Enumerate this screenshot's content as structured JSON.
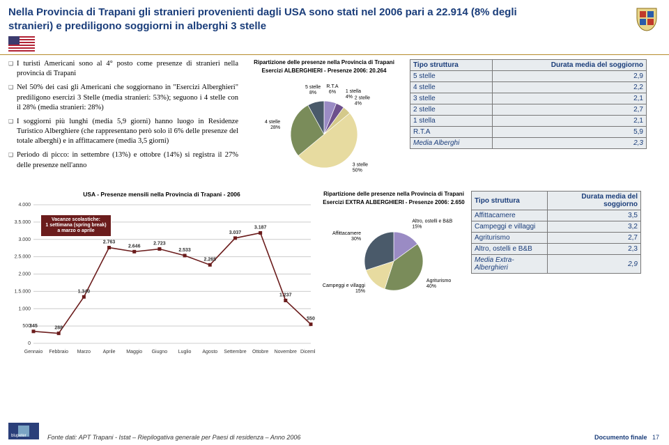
{
  "header": {
    "title": "Nella Provincia di Trapani gli stranieri provenienti dagli USA sono stati nel 2006 pari a 22.914 (8% degli stranieri) e prediligono soggiorni in alberghi 3 stelle"
  },
  "bullets": {
    "b1": "I turisti Americani sono al 4° posto come presenze di stranieri nella provincia di Trapani",
    "b2": "Nel 50% dei casi gli Americani che soggiornano in \"Esercizi Alberghieri\" prediligono esercizi 3 Stelle (media stranieri: 53%); seguono i 4 stelle con il 28% (media stranieri: 28%)",
    "b3": "I soggiorni più lunghi (media 5,9 giorni) hanno luogo in Residenze Turistico Alberghiere (che rappresentano però solo il 6% delle presenze del totale alberghi) e in affittacamere (media 3,5 giorni)",
    "b4": "Periodo di picco: in settembre (13%) e ottobre (14%) si registra il 27% delle presenze nell'anno"
  },
  "pie1": {
    "title1": "Ripartizione delle presenze nella Provincia di Trapani",
    "title2": "Esercizi ALBERGHIERI - Presenze 2006: 20.264",
    "slices": [
      {
        "label": "R.T.A",
        "pct": 6,
        "lbl": "R.T.A\n6%",
        "color": "#9a8bc4"
      },
      {
        "label": "1 stella",
        "pct": 4,
        "lbl": "1 stella\n4%",
        "color": "#6d508c"
      },
      {
        "label": "2 stelle",
        "pct": 4,
        "lbl": "2 stelle\n4%",
        "color": "#d4c98a"
      },
      {
        "label": "3 stelle",
        "pct": 50,
        "lbl": "3 stelle\n50%",
        "color": "#e7dba0"
      },
      {
        "label": "4 stelle",
        "pct": 28,
        "lbl": "4 stelle\n28%",
        "color": "#7a8c5a"
      },
      {
        "label": "5 stelle",
        "pct": 8,
        "lbl": "5 stelle\n8%",
        "color": "#4a5a6a"
      }
    ]
  },
  "table1": {
    "h1": "Tipo struttura",
    "h2": "Durata media del soggiorno",
    "rows": [
      {
        "t": "5 stelle",
        "v": "2,9"
      },
      {
        "t": "4 stelle",
        "v": "2,2"
      },
      {
        "t": "3 stelle",
        "v": "2,1"
      },
      {
        "t": "2 stelle",
        "v": "2,7"
      },
      {
        "t": "1 stella",
        "v": "2,1"
      },
      {
        "t": "R.T.A",
        "v": "5,9"
      }
    ],
    "media_t": "Media Alberghi",
    "media_v": "2,3"
  },
  "lineChart": {
    "title": "USA - Presenze mensili nella Provincia di Trapani - 2006",
    "months": [
      "Gennaio",
      "Febbraio",
      "Marzo",
      "Aprile",
      "Maggio",
      "Giugno",
      "Luglio",
      "Agosto",
      "Settembre",
      "Ottobre",
      "Novembre",
      "Dicembre"
    ],
    "values": [
      345,
      288,
      1340,
      2763,
      2646,
      2723,
      2533,
      2265,
      3037,
      3187,
      1237,
      550
    ],
    "labels": [
      "345",
      "288",
      "1.340",
      "2.763",
      "2.646",
      "2.723",
      "2.533",
      "2.265",
      "3.037",
      "3.187",
      "1.237",
      "550"
    ],
    "ymax": 4000,
    "ystep": 500,
    "line_color": "#6b1c1c",
    "marker_color": "#6b1c1c",
    "grid_color": "#cccccc",
    "badge": "Vacanze scolastiche:\n1 settimana (spring break)\na marzo o aprile"
  },
  "pie2": {
    "title1": "Ripartizione delle presenze nella Provincia di Trapani",
    "title2": "Esercizi EXTRA ALBERGHIERI - Presenze 2006: 2.650",
    "slices": [
      {
        "label": "Altro, ostelli e B&B",
        "pct": 15,
        "lbl": "Altro, ostelli e B&B\n15%",
        "color": "#9a8bc4"
      },
      {
        "label": "Agriturismo",
        "pct": 40,
        "lbl": "Agriturismo\n40%",
        "color": "#7a8c5a"
      },
      {
        "label": "Campeggi e villaggi",
        "pct": 15,
        "lbl": "Campeggi e villaggi\n15%",
        "color": "#e7dba0"
      },
      {
        "label": "Affittacamere",
        "pct": 30,
        "lbl": "Affittacamere\n30%",
        "color": "#4a5a6a"
      }
    ]
  },
  "table2": {
    "h1": "Tipo struttura",
    "h2": "Durata media del soggiorno",
    "rows": [
      {
        "t": "Affittacamere",
        "v": "3,5"
      },
      {
        "t": "Campeggi e villaggi",
        "v": "3,2"
      },
      {
        "t": "Agriturismo",
        "v": "2,7"
      },
      {
        "t": "Altro, ostelli e B&B",
        "v": "2,3"
      }
    ],
    "media_t": "Media Extra-Alberghieri",
    "media_v": "2,9"
  },
  "footer": {
    "source": "Fonte dati: APT Trapani - Istat – Riepilogativa generale per Paesi di residenza – Anno 2006",
    "doc": "Documento finale",
    "page": "17",
    "brand": "blupeter"
  }
}
